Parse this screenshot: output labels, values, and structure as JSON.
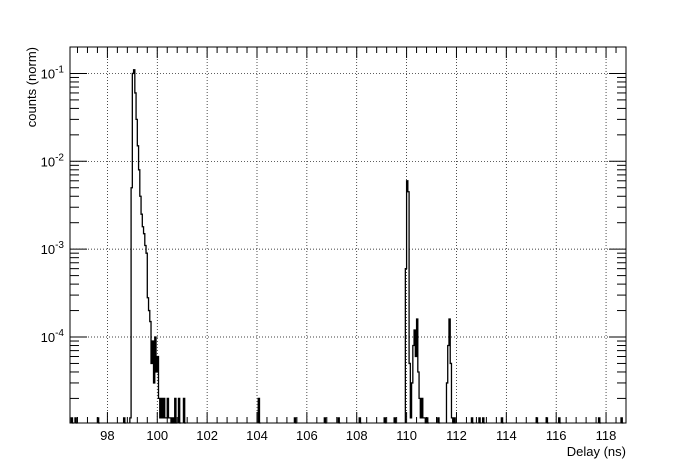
{
  "chart_data": {
    "type": "histogram",
    "title": "",
    "xlabel": "Delay (ns)",
    "ylabel": "counts (norm)",
    "xlim": [
      96.5,
      118.8
    ],
    "ylim": [
      1.05e-05,
      0.2
    ],
    "y_scale": "log",
    "grid": true,
    "x_ticks": [
      98,
      100,
      102,
      104,
      106,
      108,
      110,
      112,
      114,
      116,
      118
    ],
    "x_tick_labels": [
      "98",
      "100",
      "102",
      "104",
      "106",
      "108",
      "110",
      "112",
      "114",
      "116",
      "118"
    ],
    "y_ticks": [
      0.0001,
      0.001,
      0.01,
      0.1
    ],
    "y_tick_labels": [
      {
        "base": "10",
        "exp": "-4"
      },
      {
        "base": "10",
        "exp": "-3"
      },
      {
        "base": "10",
        "exp": "-2"
      },
      {
        "base": "10",
        "exp": "-1"
      }
    ],
    "bin_width": 0.05,
    "series": [
      {
        "color": "#000000",
        "points": [
          [
            96.55,
            1.2e-05
          ],
          [
            96.6,
            0
          ],
          [
            96.7,
            1.2e-05
          ],
          [
            96.75,
            0
          ],
          [
            97.6,
            1.2e-05
          ],
          [
            97.65,
            0
          ],
          [
            98.65,
            1.2e-05
          ],
          [
            98.7,
            0
          ],
          [
            98.9,
            1.2e-05
          ],
          [
            98.95,
            0.005
          ],
          [
            99.0,
            0.1
          ],
          [
            99.05,
            0.11
          ],
          [
            99.1,
            0.06
          ],
          [
            99.15,
            0.03
          ],
          [
            99.2,
            0.015
          ],
          [
            99.25,
            0.008
          ],
          [
            99.3,
            0.004
          ],
          [
            99.35,
            0.0025
          ],
          [
            99.4,
            0.0018
          ],
          [
            99.45,
            0.0015
          ],
          [
            99.5,
            0.0011
          ],
          [
            99.55,
            0.0009
          ],
          [
            99.6,
            0.00028
          ],
          [
            99.65,
            0.0002
          ],
          [
            99.7,
            0.00015
          ],
          [
            99.75,
            5e-05
          ],
          [
            99.8,
            9e-05
          ],
          [
            99.85,
            3e-05
          ],
          [
            99.9,
            0.0001
          ],
          [
            99.95,
            4e-05
          ],
          [
            100.0,
            6e-05
          ],
          [
            100.05,
            2e-05
          ],
          [
            100.1,
            1.2e-05
          ],
          [
            100.15,
            2e-05
          ],
          [
            100.2,
            1.2e-05
          ],
          [
            100.25,
            2e-05
          ],
          [
            100.3,
            1.2e-05
          ],
          [
            100.35,
            1.2e-05
          ],
          [
            100.4,
            2e-05
          ],
          [
            100.45,
            1.2e-05
          ],
          [
            100.5,
            1.2e-05
          ],
          [
            100.55,
            0
          ],
          [
            100.6,
            1.2e-05
          ],
          [
            100.65,
            0
          ],
          [
            100.7,
            2e-05
          ],
          [
            100.75,
            0
          ],
          [
            100.85,
            2e-05
          ],
          [
            100.9,
            0
          ],
          [
            101.05,
            2e-05
          ],
          [
            101.1,
            0
          ],
          [
            104.05,
            2e-05
          ],
          [
            104.1,
            0
          ],
          [
            105.5,
            1.2e-05
          ],
          [
            105.55,
            0
          ],
          [
            106.7,
            1.2e-05
          ],
          [
            106.75,
            0
          ],
          [
            107.25,
            1.2e-05
          ],
          [
            107.3,
            0
          ],
          [
            108.1,
            1.2e-05
          ],
          [
            108.15,
            0
          ],
          [
            109.1,
            1.2e-05
          ],
          [
            109.15,
            0
          ],
          [
            109.5,
            1.2e-05
          ],
          [
            109.55,
            0
          ],
          [
            109.95,
            0.0006
          ],
          [
            110.0,
            0.006
          ],
          [
            110.05,
            0.0045
          ],
          [
            110.1,
            5e-05
          ],
          [
            110.15,
            1.2e-05
          ],
          [
            110.2,
            3e-05
          ],
          [
            110.25,
            8e-05
          ],
          [
            110.3,
            0.00012
          ],
          [
            110.35,
            6e-05
          ],
          [
            110.4,
            0.00016
          ],
          [
            110.45,
            4e-05
          ],
          [
            110.5,
            2e-05
          ],
          [
            110.55,
            1.2e-05
          ],
          [
            110.6,
            2e-05
          ],
          [
            110.65,
            1.2e-05
          ],
          [
            110.7,
            1.2e-05
          ],
          [
            110.75,
            0
          ],
          [
            110.8,
            1.2e-05
          ],
          [
            110.85,
            0
          ],
          [
            111.25,
            1.2e-05
          ],
          [
            111.3,
            0
          ],
          [
            111.6,
            3e-05
          ],
          [
            111.65,
            8e-05
          ],
          [
            111.7,
            0.00016
          ],
          [
            111.75,
            5e-05
          ],
          [
            111.8,
            1.2e-05
          ],
          [
            111.85,
            0
          ],
          [
            111.9,
            1.2e-05
          ],
          [
            111.95,
            0
          ],
          [
            112.6,
            1.2e-05
          ],
          [
            112.65,
            0
          ],
          [
            112.9,
            1.2e-05
          ],
          [
            112.95,
            0
          ],
          [
            113.05,
            1.2e-05
          ],
          [
            113.1,
            0
          ],
          [
            113.8,
            1.2e-05
          ],
          [
            113.85,
            0
          ],
          [
            115.2,
            1.2e-05
          ],
          [
            115.25,
            0
          ],
          [
            115.6,
            1.2e-05
          ],
          [
            115.65,
            0
          ],
          [
            116.1,
            1.2e-05
          ],
          [
            116.15,
            0
          ],
          [
            117.7,
            1.2e-05
          ],
          [
            117.75,
            0
          ],
          [
            118.6,
            1.2e-05
          ],
          [
            118.65,
            0
          ]
        ]
      }
    ]
  }
}
